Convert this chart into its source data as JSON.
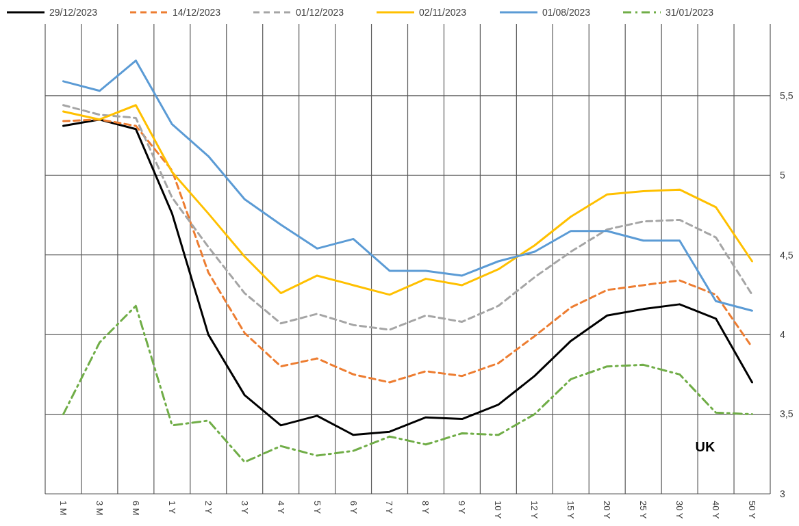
{
  "chart_data": {
    "type": "line",
    "categories": [
      "1 M",
      "3 M",
      "6 M",
      "1 Y",
      "2 Y",
      "3 Y",
      "4 Y",
      "5 Y",
      "6 Y",
      "7 Y",
      "8 Y",
      "9 Y",
      "10 Y",
      "12 Y",
      "15 Y",
      "20 Y",
      "25 Y",
      "30 Y",
      "40 Y",
      "50 Y"
    ],
    "series": [
      {
        "name": "29/12/2023",
        "color": "#000000",
        "line_style": "solid",
        "values": [
          5.31,
          5.35,
          5.29,
          4.76,
          4.0,
          3.62,
          3.43,
          3.49,
          3.37,
          3.39,
          3.48,
          3.47,
          3.56,
          3.74,
          3.96,
          4.12,
          4.16,
          4.19,
          4.1,
          3.7
        ]
      },
      {
        "name": "14/12/2023",
        "color": "#ed7d31",
        "line_style": "dashed",
        "values": [
          5.34,
          5.35,
          5.31,
          5.03,
          4.39,
          4.01,
          3.8,
          3.85,
          3.75,
          3.7,
          3.77,
          3.74,
          3.82,
          3.99,
          4.17,
          4.28,
          4.31,
          4.34,
          4.25,
          3.92
        ]
      },
      {
        "name": "01/12/2023",
        "color": "#a5a5a5",
        "line_style": "dashed",
        "values": [
          5.44,
          5.38,
          5.36,
          4.86,
          4.55,
          4.26,
          4.07,
          4.13,
          4.06,
          4.03,
          4.12,
          4.08,
          4.18,
          4.36,
          4.52,
          4.66,
          4.71,
          4.72,
          4.61,
          4.25
        ]
      },
      {
        "name": "02/11/2023",
        "color": "#ffc000",
        "line_style": "solid",
        "values": [
          5.4,
          5.35,
          5.44,
          5.02,
          4.76,
          4.49,
          4.26,
          4.37,
          4.31,
          4.25,
          4.35,
          4.31,
          4.41,
          4.56,
          4.74,
          4.88,
          4.9,
          4.91,
          4.8,
          4.46
        ]
      },
      {
        "name": "01/08/2023",
        "color": "#5b9bd5",
        "line_style": "solid",
        "values": [
          5.59,
          5.53,
          5.72,
          5.32,
          5.12,
          4.85,
          4.69,
          4.54,
          4.6,
          4.4,
          4.4,
          4.37,
          4.46,
          4.52,
          4.65,
          4.65,
          4.59,
          4.59,
          4.21,
          4.15
        ]
      },
      {
        "name": "31/01/2023",
        "color": "#70ad47",
        "line_style": "dashdot",
        "values": [
          3.5,
          3.95,
          4.18,
          3.43,
          3.46,
          3.2,
          3.3,
          3.24,
          3.27,
          3.36,
          3.31,
          3.38,
          3.37,
          3.5,
          3.72,
          3.8,
          3.81,
          3.75,
          3.51,
          3.5
        ]
      }
    ],
    "ylim": [
      3,
      5.95
    ],
    "yticks": [
      3,
      {
        "value": 3.5,
        "label": "3,5"
      },
      4,
      {
        "value": 4.5,
        "label": "4,5"
      },
      5,
      {
        "value": 5.5,
        "label": "5,5"
      }
    ],
    "grid": true,
    "legend": "top",
    "marker": "none",
    "annotations": [
      "UK"
    ]
  }
}
